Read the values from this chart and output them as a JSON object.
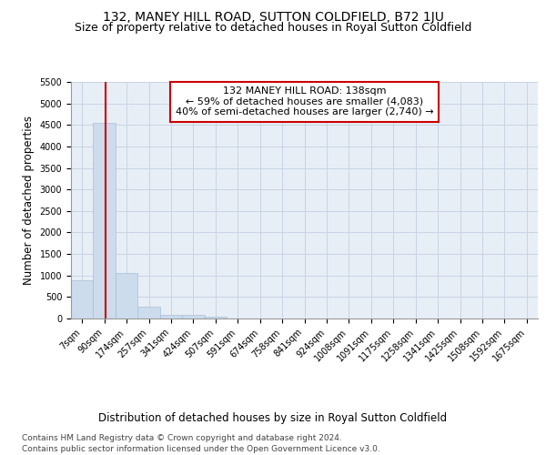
{
  "title": "132, MANEY HILL ROAD, SUTTON COLDFIELD, B72 1JU",
  "subtitle": "Size of property relative to detached houses in Royal Sutton Coldfield",
  "xlabel": "Distribution of detached houses by size in Royal Sutton Coldfield",
  "ylabel": "Number of detached properties",
  "footnote1": "Contains HM Land Registry data © Crown copyright and database right 2024.",
  "footnote2": "Contains public sector information licensed under the Open Government Licence v3.0.",
  "annotation_line1": "132 MANEY HILL ROAD: 138sqm",
  "annotation_line2": "← 59% of detached houses are smaller (4,083)",
  "annotation_line3": "40% of semi-detached houses are larger (2,740) →",
  "bar_color": "#ccdcec",
  "bar_edge_color": "#a8c0d8",
  "vline_color": "#cc0000",
  "annotation_box_edge_color": "#cc0000",
  "background_color": "#ffffff",
  "plot_bg_color": "#e8eef6",
  "grid_color": "#c8d4e4",
  "bin_labels": [
    "7sqm",
    "90sqm",
    "174sqm",
    "257sqm",
    "341sqm",
    "424sqm",
    "507sqm",
    "591sqm",
    "674sqm",
    "758sqm",
    "841sqm",
    "924sqm",
    "1008sqm",
    "1091sqm",
    "1175sqm",
    "1258sqm",
    "1341sqm",
    "1425sqm",
    "1508sqm",
    "1592sqm",
    "1675sqm"
  ],
  "bar_heights": [
    880,
    4550,
    1060,
    280,
    90,
    75,
    45,
    0,
    0,
    0,
    0,
    0,
    0,
    0,
    0,
    0,
    0,
    0,
    0,
    0,
    0
  ],
  "n_bins": 21,
  "ylim": [
    0,
    5500
  ],
  "yticks": [
    0,
    500,
    1000,
    1500,
    2000,
    2500,
    3000,
    3500,
    4000,
    4500,
    5000,
    5500
  ],
  "title_fontsize": 10,
  "subtitle_fontsize": 9,
  "axis_label_fontsize": 8.5,
  "tick_fontsize": 7,
  "annotation_fontsize": 8,
  "footnote_fontsize": 6.5
}
